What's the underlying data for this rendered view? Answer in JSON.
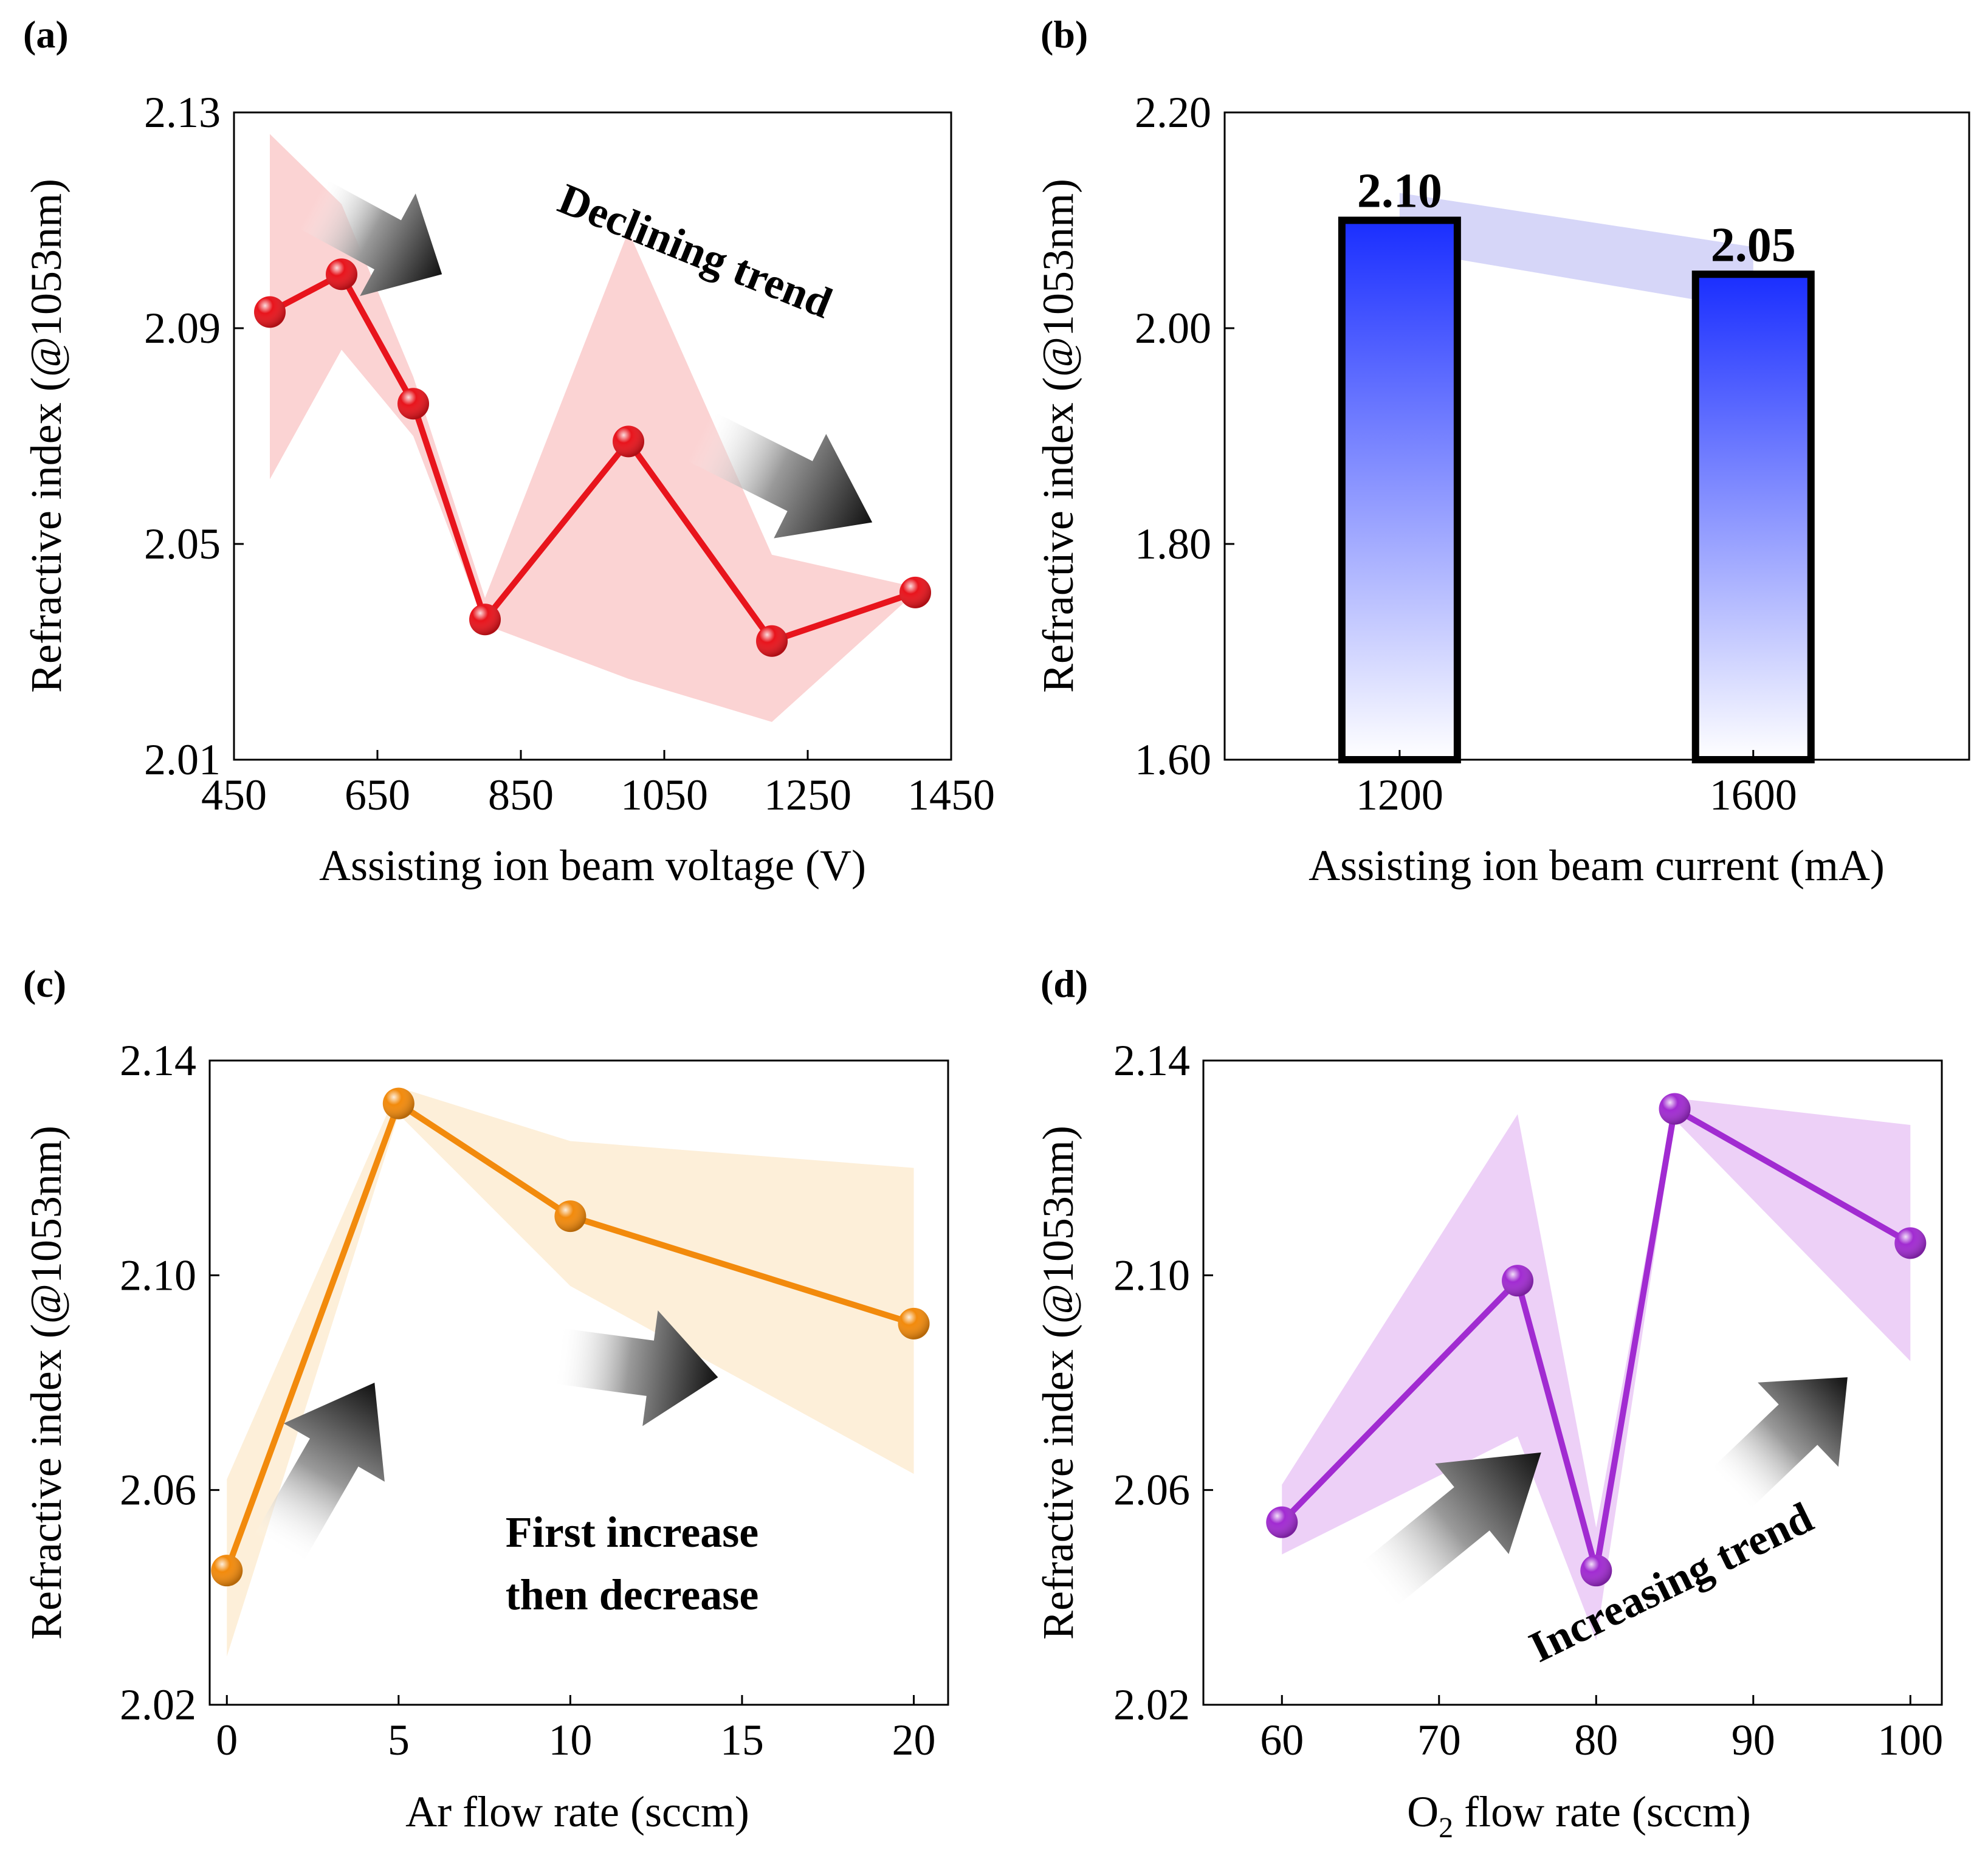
{
  "chart_data": [
    {
      "panel": "(a)",
      "type": "line",
      "xlabel": "Assisting ion beam voltage (V)",
      "ylabel": "Refractive index (@1053nm)",
      "xlim": [
        450,
        1450
      ],
      "ylim": [
        2.01,
        2.13
      ],
      "xticks": [
        "450",
        "650",
        "850",
        "1050",
        "1250",
        "1450"
      ],
      "yticks": [
        "2.01",
        "2.05",
        "2.09",
        "2.13"
      ],
      "x": [
        500,
        600,
        700,
        800,
        1000,
        1200,
        1400
      ],
      "y": [
        2.093,
        2.1,
        2.076,
        2.036,
        2.069,
        2.032,
        2.041
      ],
      "band_upper": [
        2.126,
        2.113,
        2.081,
        2.04,
        2.108,
        2.048,
        2.042
      ],
      "band_lower": [
        2.062,
        2.086,
        2.07,
        2.035,
        2.025,
        2.017,
        2.041
      ],
      "color": "#e8141c",
      "band_color": "#fbd3d3",
      "annotations": [
        {
          "text": "Declining trend",
          "x": 1100,
          "y": 2.11
        }
      ],
      "arrows": [
        {
          "from": [
            560,
            2.113
          ],
          "to": [
            740,
            2.1
          ]
        },
        {
          "from": [
            1100,
            2.07
          ],
          "to": [
            1340,
            2.054
          ]
        }
      ]
    },
    {
      "panel": "(b)",
      "type": "bar",
      "xlabel": "Assisting ion beam current (mA)",
      "ylabel": "Refractive index (@1053nm)",
      "categories": [
        "1200",
        "1600"
      ],
      "values": [
        2.1,
        2.05
      ],
      "data_labels": [
        "2.10",
        "2.05"
      ],
      "ylim": [
        1.6,
        2.2
      ],
      "yticks": [
        "1.60",
        "1.80",
        "2.00",
        "2.20"
      ],
      "bar_top_color": "#1a2eff",
      "bar_bottom_color": "#ffffff",
      "band_color": "#d6d6f8"
    },
    {
      "panel": "(c)",
      "type": "line",
      "xlabel": "Ar flow rate (sccm)",
      "ylabel": "Refractive index (@1053nm)",
      "xlim": [
        -0.5,
        21
      ],
      "ylim": [
        2.02,
        2.14
      ],
      "xticks": [
        "0",
        "5",
        "10",
        "15",
        "20"
      ],
      "yticks": [
        "2.02",
        "2.06",
        "2.10",
        "2.14"
      ],
      "x": [
        0,
        5,
        10,
        20
      ],
      "y": [
        2.045,
        2.132,
        2.111,
        2.091
      ],
      "band_upper": [
        2.062,
        2.135,
        2.125,
        2.12
      ],
      "band_lower": [
        2.029,
        2.13,
        2.098,
        2.063
      ],
      "color": "#f28a0c",
      "band_color": "#fdefd9",
      "annotations": [
        {
          "text": "First increase",
          "x": 11.8,
          "y": 2.051
        },
        {
          "text": "then decrease",
          "x": 11.8,
          "y": 2.039
        }
      ],
      "arrows": [
        {
          "from": [
            1.5,
            2.049
          ],
          "to": [
            4.3,
            2.08
          ]
        },
        {
          "from": [
            9.6,
            2.085
          ],
          "to": [
            14.3,
            2.081
          ]
        }
      ]
    },
    {
      "panel": "(d)",
      "type": "line",
      "xlabel": "O2 flow rate (sccm)",
      "ylabel": "Refractive index (@1053nm)",
      "xlim": [
        55,
        102
      ],
      "ylim": [
        2.02,
        2.14
      ],
      "xticks": [
        "60",
        "70",
        "80",
        "90",
        "100"
      ],
      "yticks": [
        "2.02",
        "2.06",
        "2.10",
        "2.14"
      ],
      "x": [
        60,
        75,
        80,
        85,
        100
      ],
      "y": [
        2.054,
        2.099,
        2.045,
        2.131,
        2.106
      ],
      "band_upper": [
        2.061,
        2.13,
        2.053,
        2.133,
        2.128
      ],
      "band_lower": [
        2.048,
        2.07,
        2.032,
        2.129,
        2.084
      ],
      "color": "#a12bd1",
      "band_color": "#edd0f7",
      "annotations": [
        {
          "text": "Increasing trend",
          "x": 87,
          "y": 2.048
        }
      ],
      "arrows": [
        {
          "from": [
            66,
            2.042
          ],
          "to": [
            76.5,
            2.067
          ]
        },
        {
          "from": [
            88.5,
            2.06
          ],
          "to": [
            96,
            2.081
          ]
        }
      ]
    }
  ]
}
